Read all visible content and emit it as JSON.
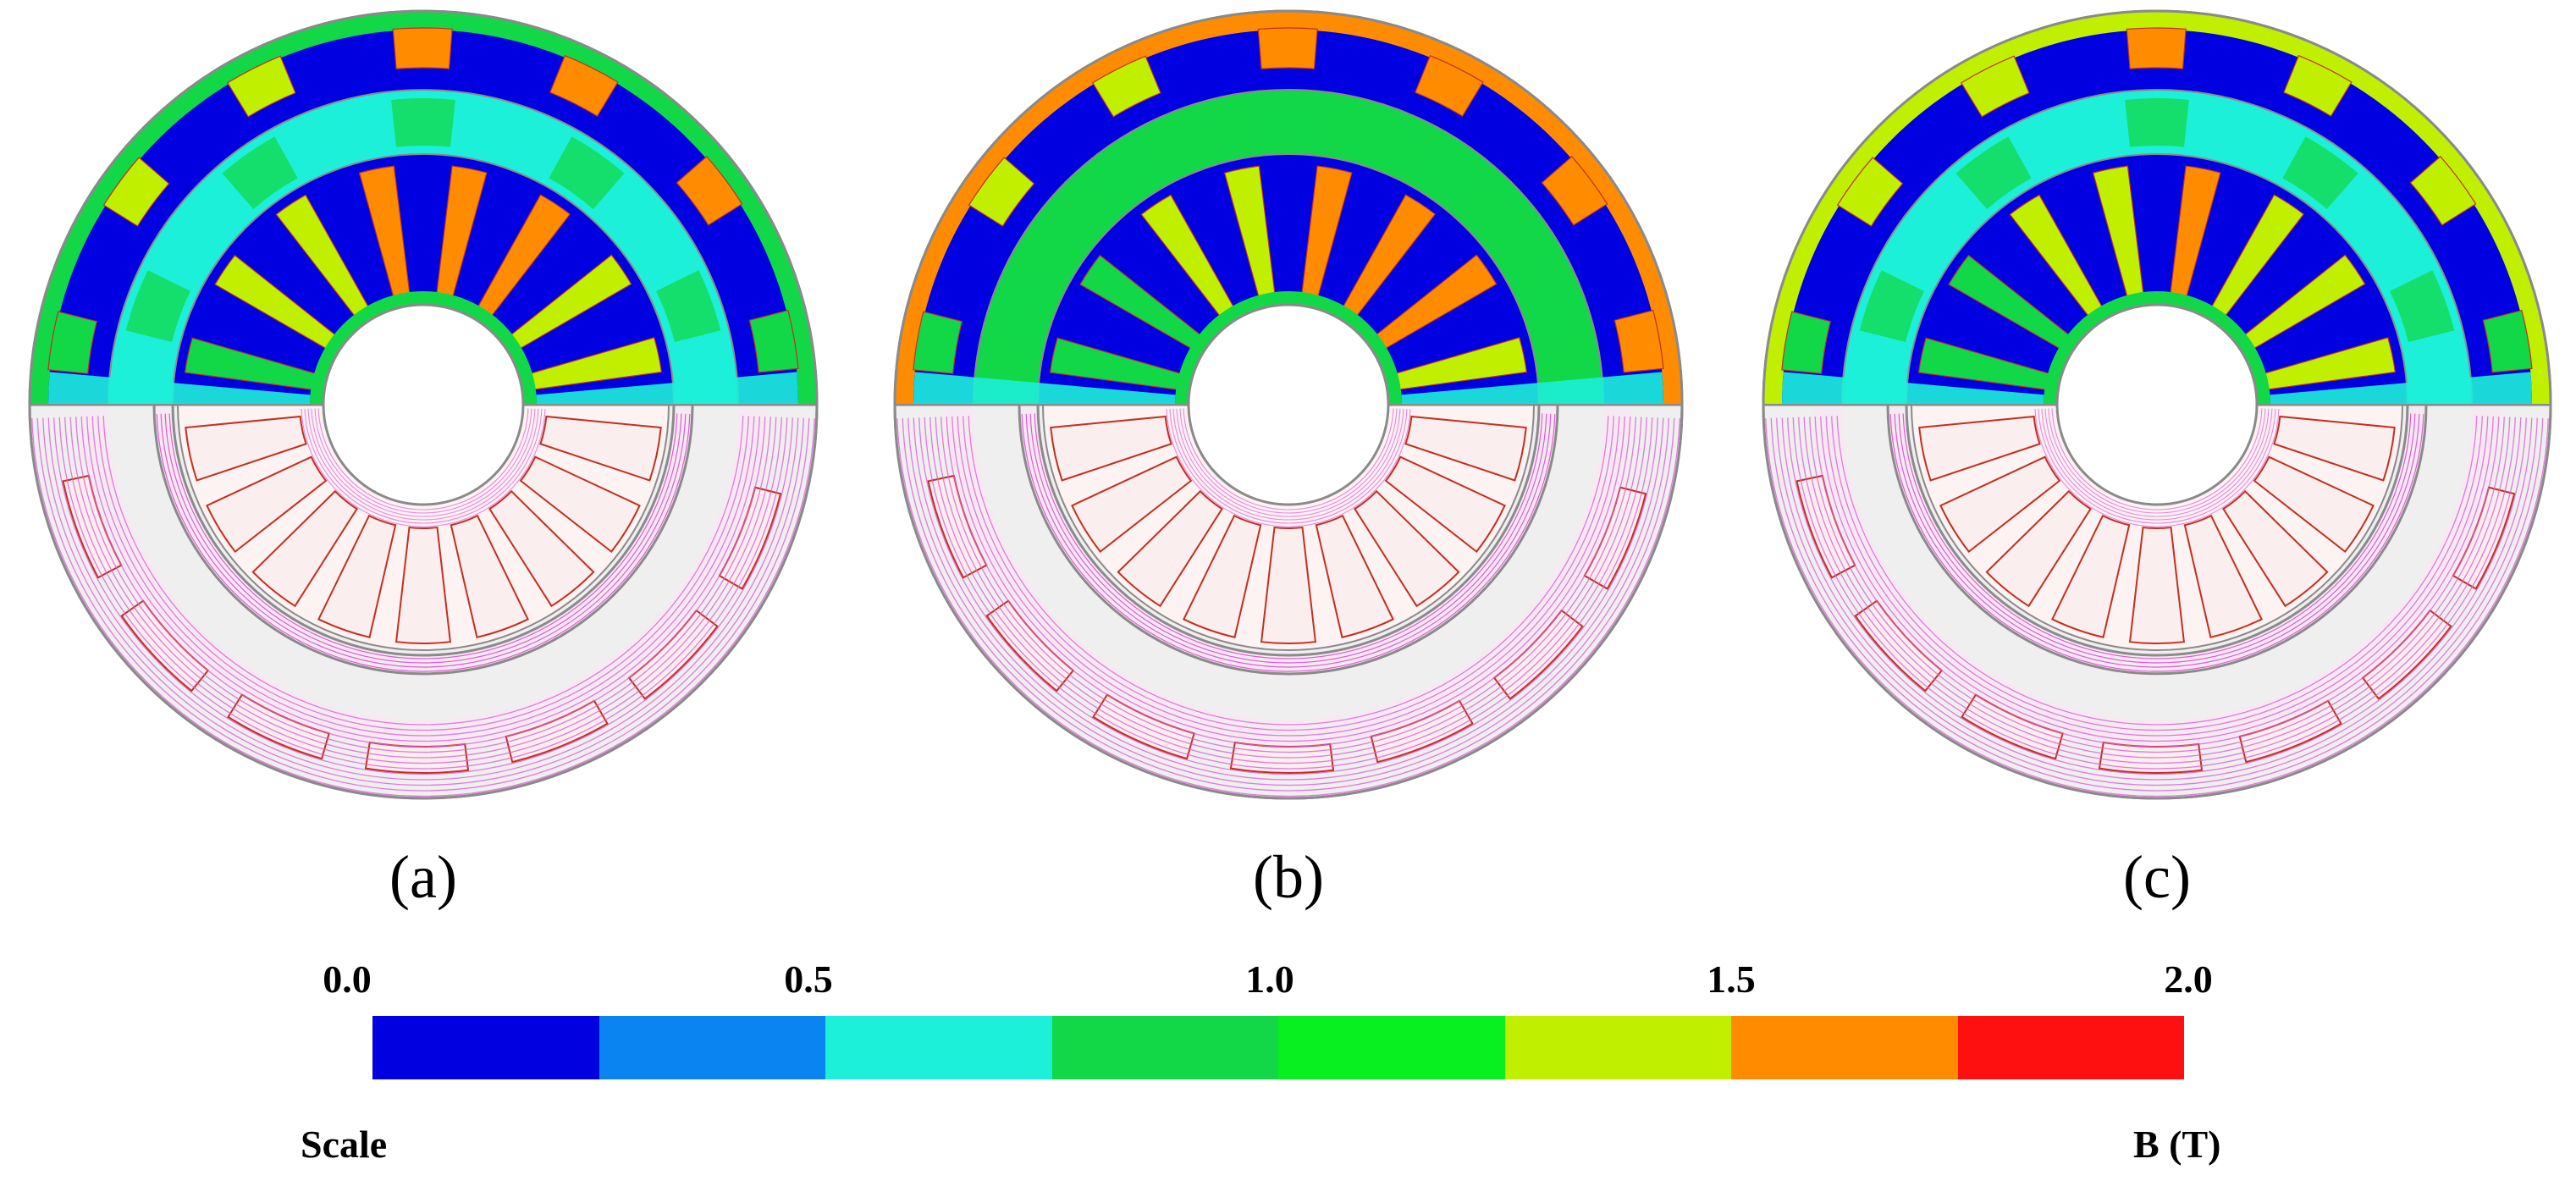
{
  "panels": [
    {
      "label": "(a)",
      "variant": "a"
    },
    {
      "label": "(b)",
      "variant": "b"
    },
    {
      "label": "(c)",
      "variant": "c"
    }
  ],
  "colorbar": {
    "ticks": [
      "0.0",
      "0.5",
      "1.0",
      "1.5",
      "2.0"
    ],
    "colors": [
      "#0000e0",
      "#0a84f0",
      "#1df0d8",
      "#12d848",
      "#08f020",
      "#c0f000",
      "#ff8c00",
      "#ff1010"
    ],
    "left_label": "Scale",
    "right_label": "B (T)"
  },
  "palette": {
    "stator_fill": "#fbeeee",
    "rotor_fill": "#f6eaf2",
    "flux_line": "#e05ad6",
    "slot_outline": "#c03020",
    "edge_gray": "#8a8a8a",
    "bore_fill": "#ffffff",
    "outer_gray": "#efefef"
  }
}
